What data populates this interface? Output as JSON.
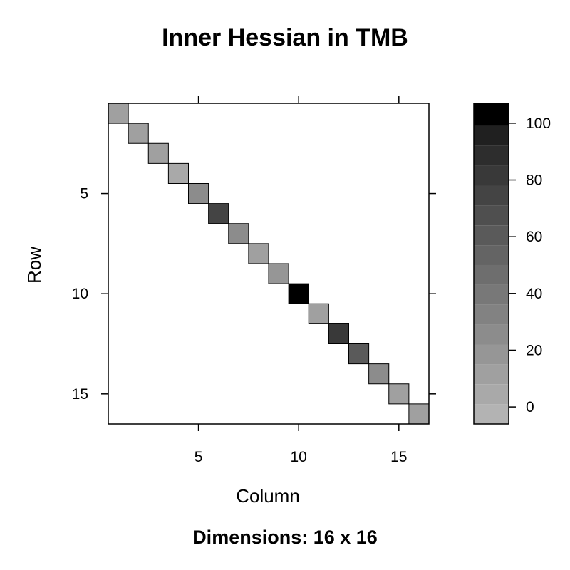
{
  "chart_data": {
    "type": "heatmap",
    "title": "Inner Hessian in TMB",
    "subtitle": "Dimensions: 16 x 16",
    "xlabel": "Column",
    "ylabel": "Row",
    "xlim": [
      0.5,
      16.5
    ],
    "ylim": [
      0.5,
      16.5
    ],
    "x_ticks": [
      5,
      10,
      15
    ],
    "y_ticks": [
      5,
      10,
      15
    ],
    "y_reversed": true,
    "rows": 16,
    "cols": 16,
    "cells": [
      {
        "row": 1,
        "col": 1,
        "value": 8
      },
      {
        "row": 2,
        "col": 2,
        "value": 12
      },
      {
        "row": 3,
        "col": 3,
        "value": 10
      },
      {
        "row": 4,
        "col": 4,
        "value": 6
      },
      {
        "row": 5,
        "col": 5,
        "value": 23
      },
      {
        "row": 6,
        "col": 6,
        "value": 72
      },
      {
        "row": 7,
        "col": 7,
        "value": 23
      },
      {
        "row": 8,
        "col": 8,
        "value": 12
      },
      {
        "row": 9,
        "col": 9,
        "value": 20
      },
      {
        "row": 10,
        "col": 10,
        "value": 104
      },
      {
        "row": 11,
        "col": 11,
        "value": 10
      },
      {
        "row": 12,
        "col": 12,
        "value": 82
      },
      {
        "row": 13,
        "col": 13,
        "value": 58
      },
      {
        "row": 14,
        "col": 14,
        "value": 28
      },
      {
        "row": 15,
        "col": 15,
        "value": 10
      },
      {
        "row": 16,
        "col": 16,
        "value": 12
      }
    ],
    "colorbar": {
      "range": [
        -6,
        107
      ],
      "ticks": [
        0,
        20,
        40,
        60,
        80,
        100
      ],
      "bands": [
        {
          "from": -6,
          "to": 1,
          "color": "#b3b3b3"
        },
        {
          "from": 1,
          "to": 8,
          "color": "#a9a9a9"
        },
        {
          "from": 8,
          "to": 15,
          "color": "#a0a0a0"
        },
        {
          "from": 15,
          "to": 22,
          "color": "#969696"
        },
        {
          "from": 22,
          "to": 29,
          "color": "#8c8c8c"
        },
        {
          "from": 29,
          "to": 36,
          "color": "#828282"
        },
        {
          "from": 36,
          "to": 43,
          "color": "#787878"
        },
        {
          "from": 43,
          "to": 50,
          "color": "#6e6e6e"
        },
        {
          "from": 50,
          "to": 57,
          "color": "#646464"
        },
        {
          "from": 57,
          "to": 64,
          "color": "#5a5a5a"
        },
        {
          "from": 64,
          "to": 71,
          "color": "#4f4f4f"
        },
        {
          "from": 71,
          "to": 78,
          "color": "#444444"
        },
        {
          "from": 78,
          "to": 85,
          "color": "#393939"
        },
        {
          "from": 85,
          "to": 92,
          "color": "#2d2d2d"
        },
        {
          "from": 92,
          "to": 99,
          "color": "#202020"
        },
        {
          "from": 99,
          "to": 107,
          "color": "#000000"
        }
      ]
    }
  }
}
